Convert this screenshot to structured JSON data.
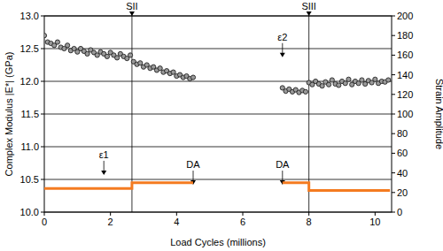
{
  "chart_data": {
    "type": "scatter",
    "x_label": "Load Cycles (millions)",
    "y_label": "Complex Modulus |E*| (GPa)",
    "y2_label": "Strain Amplitude",
    "xlim": [
      0,
      10.5
    ],
    "xticks": [
      0,
      2,
      4,
      6,
      8,
      10
    ],
    "ylim": [
      10,
      13
    ],
    "yticks": [
      {
        "value": 10,
        "label": "10.0"
      },
      {
        "value": 10.5,
        "label": "10.5"
      },
      {
        "value": 11,
        "label": "11.0"
      },
      {
        "value": 11.5,
        "label": "11.5"
      },
      {
        "value": 12,
        "label": "12.0"
      },
      {
        "value": 12.5,
        "label": "12.5"
      },
      {
        "value": 13,
        "label": "13.0"
      }
    ],
    "y2lim": [
      0,
      200
    ],
    "y2ticks": [
      0,
      20,
      40,
      60,
      80,
      100,
      120,
      140,
      160,
      180,
      200
    ],
    "grid": true,
    "series": [
      {
        "type": "scatter",
        "marker": "circle",
        "color": "#222222",
        "x": [
          0.0,
          0.1,
          0.2,
          0.3,
          0.4,
          0.5,
          0.6,
          0.7,
          0.8,
          0.9,
          1.0,
          1.1,
          1.2,
          1.3,
          1.4,
          1.5,
          1.6,
          1.7,
          1.8,
          1.9,
          2.0,
          2.1,
          2.2,
          2.3,
          2.4,
          2.5,
          2.6,
          2.7,
          2.8,
          2.9,
          3.0,
          3.1,
          3.2,
          3.3,
          3.4,
          3.5,
          3.6,
          3.7,
          3.8,
          3.9,
          4.0,
          4.1,
          4.2,
          4.3,
          4.4,
          4.5,
          7.2,
          7.3,
          7.4,
          7.5,
          7.6,
          7.7,
          7.8,
          7.9,
          8.0,
          8.1,
          8.2,
          8.3,
          8.4,
          8.5,
          8.6,
          8.7,
          8.8,
          8.9,
          9.0,
          9.1,
          9.2,
          9.3,
          9.4,
          9.5,
          9.6,
          9.7,
          9.8,
          9.9,
          10.0,
          10.1,
          10.2,
          10.3,
          10.4
        ],
        "values": [
          12.7,
          12.6,
          12.58,
          12.55,
          12.6,
          12.52,
          12.5,
          12.55,
          12.47,
          12.5,
          12.45,
          12.5,
          12.46,
          12.42,
          12.48,
          12.44,
          12.4,
          12.45,
          12.42,
          12.38,
          12.44,
          12.4,
          12.36,
          12.42,
          12.38,
          12.35,
          12.4,
          12.3,
          12.26,
          12.28,
          12.22,
          12.25,
          12.2,
          12.22,
          12.17,
          12.2,
          12.14,
          12.16,
          12.12,
          12.14,
          12.08,
          12.1,
          12.06,
          12.08,
          12.04,
          12.06,
          11.9,
          11.85,
          11.88,
          11.84,
          11.87,
          11.83,
          11.86,
          11.84,
          11.98,
          11.95,
          12.0,
          11.96,
          11.93,
          11.99,
          11.95,
          12.02,
          11.96,
          11.94,
          12.0,
          11.97,
          12.03,
          11.95,
          12.0,
          11.97,
          12.02,
          11.96,
          12.01,
          11.98,
          12.03,
          11.97,
          12.0,
          11.99,
          12.02
        ]
      },
      {
        "type": "line",
        "axis": "y2",
        "color": "#f47b20",
        "x": [
          0,
          2.65,
          2.65,
          4.5,
          5.8,
          7.2,
          8.0,
          8.0,
          10.45
        ],
        "values": [
          24,
          24,
          30,
          30,
          null,
          30,
          30,
          22,
          22
        ]
      }
    ],
    "annotations": [
      {
        "text": "SII",
        "x": 2.65,
        "y": 200
      },
      {
        "text": "SIII",
        "x": 8.0,
        "y": 200
      },
      {
        "text": "ε1",
        "x": 1.8,
        "y": 55
      },
      {
        "text": "ε2",
        "x": 7.2,
        "y": 175
      },
      {
        "text": "DA",
        "x": 4.5,
        "y": 45
      },
      {
        "text": "DA",
        "x": 7.2,
        "y": 45
      }
    ]
  }
}
